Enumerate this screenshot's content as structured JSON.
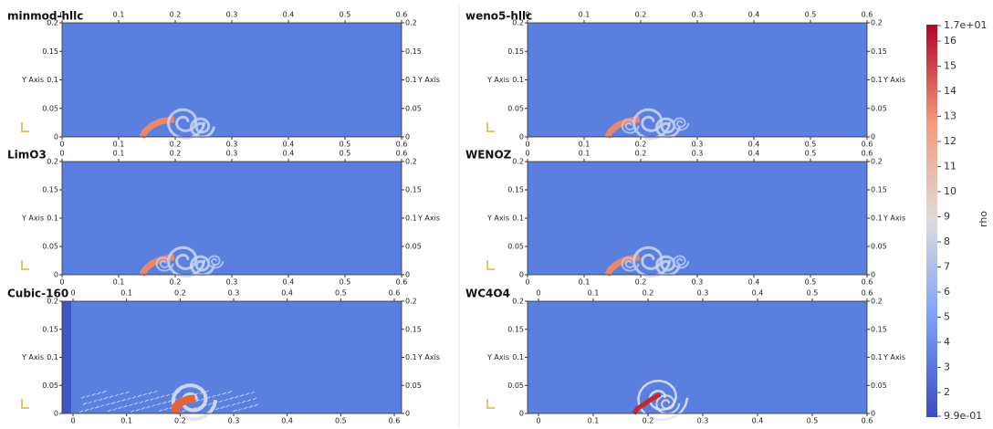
{
  "panels": [
    {
      "title": "minmod-hllc"
    },
    {
      "title": "weno5-hllc"
    },
    {
      "title": "LimO3"
    },
    {
      "title": "WENOZ"
    },
    {
      "title": "Cubic-160"
    },
    {
      "title": "WC4O4"
    }
  ],
  "axes": {
    "xticks": [
      "0",
      "0.1",
      "0.2",
      "0.3",
      "0.4",
      "0.5",
      "0.6"
    ],
    "yticks": [
      "0",
      "0.05",
      "0.1",
      "0.15",
      "0.2"
    ],
    "y_label": "Y Axis"
  },
  "colorbar": {
    "title": "rho",
    "labels": [
      "1.7e+01",
      "16",
      "15",
      "14",
      "13",
      "12",
      "11",
      "10",
      "9",
      "8",
      "7",
      "6",
      "5",
      "4",
      "3",
      "2",
      "9.9e-01"
    ]
  }
}
